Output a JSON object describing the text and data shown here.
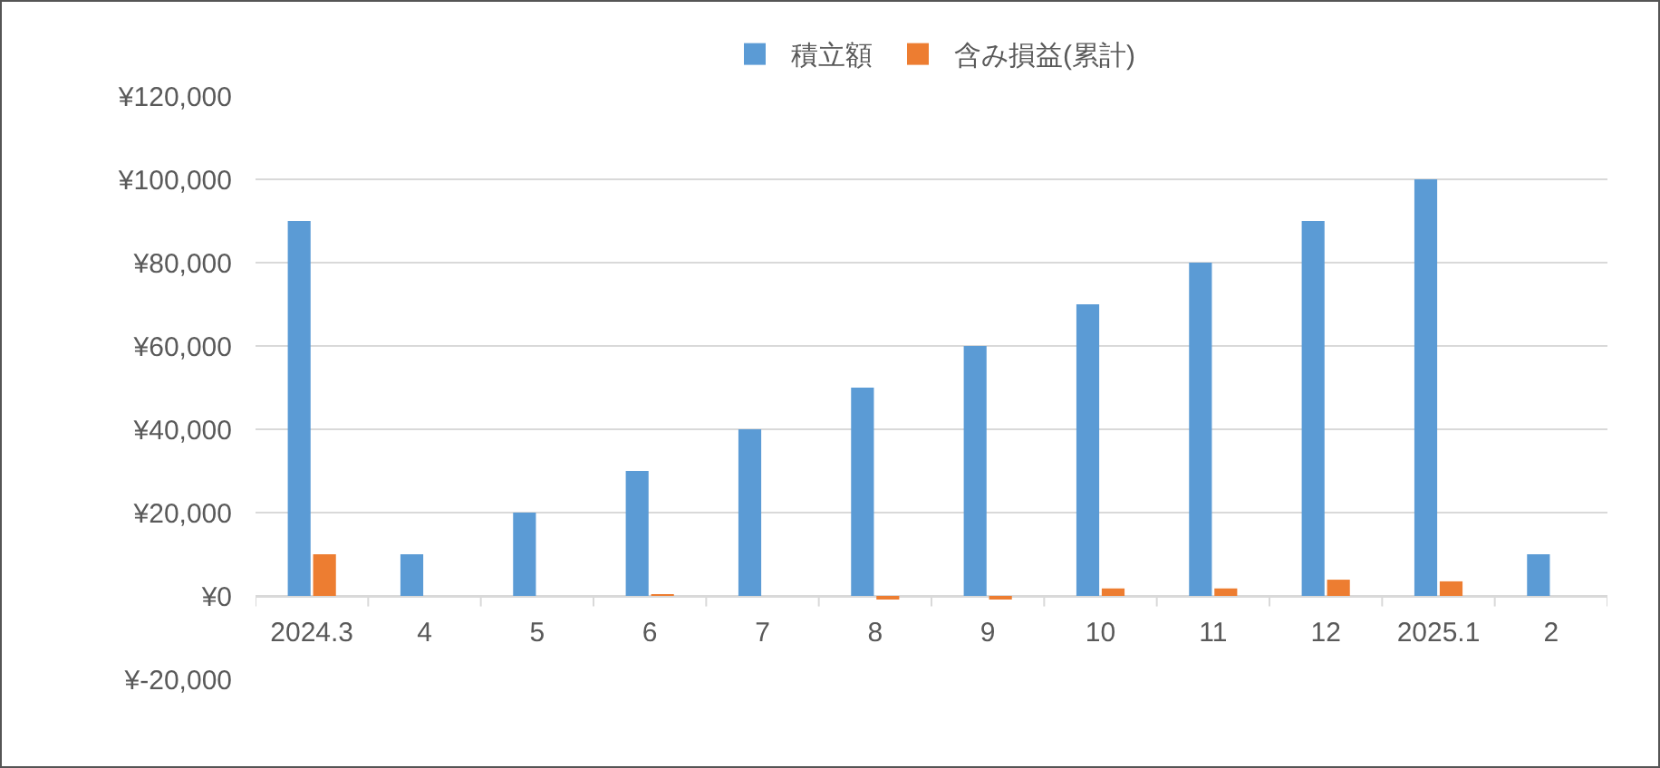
{
  "chart_data": {
    "type": "bar",
    "categories": [
      "2024.3",
      "4",
      "5",
      "6",
      "7",
      "8",
      "9",
      "10",
      "11",
      "12",
      "2025.1",
      "2"
    ],
    "series": [
      {
        "name": "積立額",
        "color": "#5b9bd5",
        "values": [
          90000,
          10000,
          20000,
          30000,
          40000,
          50000,
          60000,
          70000,
          80000,
          90000,
          100000,
          10000
        ]
      },
      {
        "name": "含み損益(累計)",
        "color": "#ed7d31",
        "values": [
          10000,
          0,
          0,
          400,
          0,
          -600,
          -600,
          1800,
          1800,
          3900,
          3500,
          0
        ]
      }
    ],
    "ylim": [
      -20000,
      120000
    ],
    "yticks": [
      {
        "value": -20000,
        "label": "¥-20,000"
      },
      {
        "value": 0,
        "label": "¥0"
      },
      {
        "value": 20000,
        "label": "¥20,000"
      },
      {
        "value": 40000,
        "label": "¥40,000"
      },
      {
        "value": 60000,
        "label": "¥60,000"
      },
      {
        "value": 80000,
        "label": "¥80,000"
      },
      {
        "value": 100000,
        "label": "¥100,000"
      },
      {
        "value": 120000,
        "label": "¥120,000"
      }
    ],
    "grid": "y",
    "legend": "top"
  }
}
